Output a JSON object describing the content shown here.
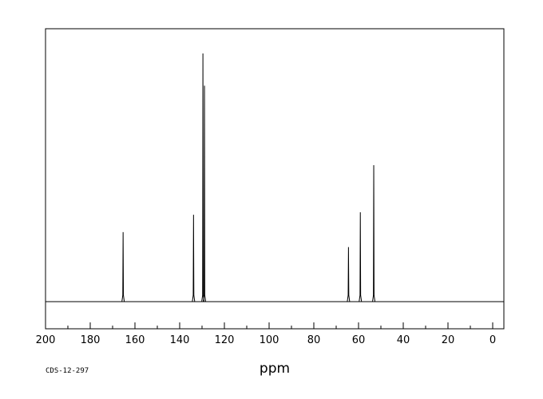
{
  "chart_data": {
    "type": "line",
    "xlabel": "ppm",
    "ylabel": "",
    "xlim": [
      200,
      -5
    ],
    "x_reversed": true,
    "ylim": [
      -0.12,
      1.12
    ],
    "grid": false,
    "legend": "none",
    "xticks": [
      200,
      180,
      160,
      140,
      120,
      100,
      80,
      60,
      40,
      20,
      0
    ],
    "xticks_minor_step": 10,
    "spectrum_code": "CDS-12-297",
    "line_color": "#000000",
    "peaks": [
      {
        "ppm": 165.3,
        "height": 0.28
      },
      {
        "ppm": 133.8,
        "height": 0.35
      },
      {
        "ppm": 129.6,
        "height": 1.0
      },
      {
        "ppm": 128.9,
        "height": 0.87
      },
      {
        "ppm": 64.5,
        "height": 0.22
      },
      {
        "ppm": 59.2,
        "height": 0.36
      },
      {
        "ppm": 53.2,
        "height": 0.55
      }
    ]
  }
}
